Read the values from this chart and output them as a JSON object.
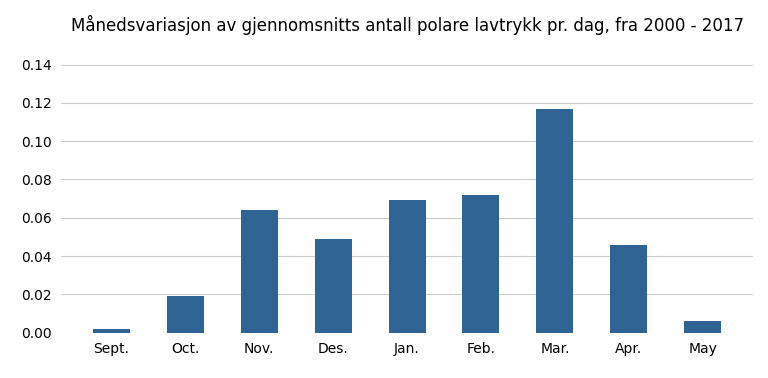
{
  "title": "Månedsvariasjon av gjennomsnitts antall polare lavtrykk pr. dag, fra 2000 - 2017",
  "categories": [
    "Sept.",
    "Oct.",
    "Nov.",
    "Des.",
    "Jan.",
    "Feb.",
    "Mar.",
    "Apr.",
    "May"
  ],
  "values": [
    0.002,
    0.019,
    0.064,
    0.049,
    0.069,
    0.072,
    0.117,
    0.046,
    0.006
  ],
  "bar_color": "#2e6393",
  "ylim": [
    0,
    0.15
  ],
  "yticks": [
    0.0,
    0.02,
    0.04,
    0.06,
    0.08,
    0.1,
    0.12,
    0.14
  ],
  "background_color": "#ffffff",
  "grid_color": "#cccccc",
  "title_fontsize": 12,
  "tick_fontsize": 10,
  "bar_width": 0.5
}
